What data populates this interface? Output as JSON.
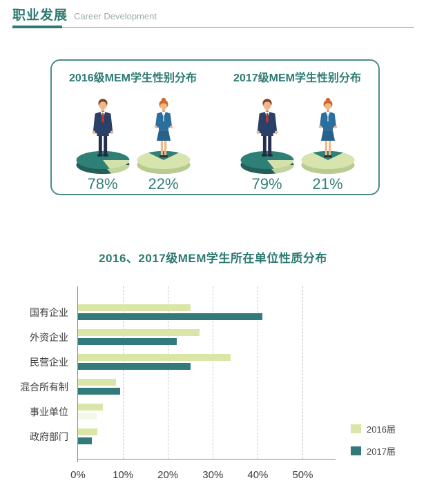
{
  "header": {
    "title_zh": "职业发展",
    "title_en": "Career Development",
    "accent_color": "#2c7a72"
  },
  "gender_panel": {
    "groups": [
      {
        "title": "2016级MEM学生性别分布",
        "male_pct": "78%",
        "female_pct": "22%"
      },
      {
        "title": "2017级MEM学生性别分布",
        "male_pct": "79%",
        "female_pct": "21%"
      }
    ],
    "male_pie_colors": {
      "major": "#2e8077",
      "minor": "#d4e2a9"
    },
    "female_pie_colors": {
      "major": "#d7e4ae",
      "minor": "#2e8077"
    }
  },
  "chart_data": {
    "type": "bar",
    "orientation": "horizontal",
    "title": "2016、2017级MEM学生所在单位性质分布",
    "categories": [
      "国有企业",
      "外资企业",
      "民营企业",
      "混合所有制",
      "事业单位",
      "政府部门"
    ],
    "series": [
      {
        "name": "2016届",
        "color": "#d9e6a7",
        "values": [
          25,
          27,
          34,
          8.5,
          5.5,
          4.3
        ]
      },
      {
        "name": "2017届",
        "color": "#337b7b",
        "values": [
          41,
          22,
          25,
          9.3,
          4.2,
          3.1
        ],
        "faint_index": 4,
        "faint_color": "#f3f7e8"
      }
    ],
    "xlabel": "",
    "ylabel": "",
    "xlim": [
      0,
      57.3
    ],
    "grid": "dashed-vertical",
    "grid_values": [
      10,
      20,
      30,
      40,
      50
    ],
    "x_ticks": [
      {
        "value": 0,
        "label": "0%"
      },
      {
        "value": 10,
        "label": "10%"
      },
      {
        "value": 20,
        "label": "20%"
      },
      {
        "value": 30,
        "label": "30%"
      },
      {
        "value": 40,
        "label": "40%"
      },
      {
        "value": 50,
        "label": "50%"
      }
    ],
    "legend_position": "right-bottom"
  }
}
